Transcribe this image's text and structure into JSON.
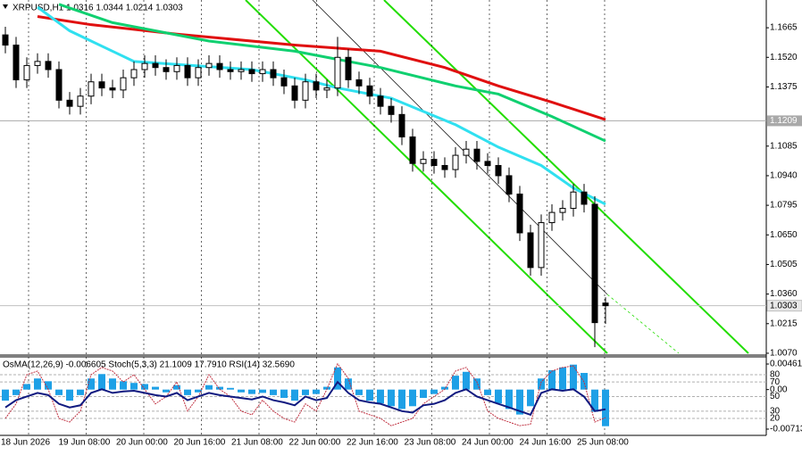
{
  "chart_data": {
    "type": "candlestick",
    "title": "XRPUSD,H1 1.0316 1.0344 1.0214 1.0303",
    "ylim": [
      1.0061,
      1.1801
    ],
    "yticks": [
      1.1665,
      {
        "value": 1.152,
        "label": "1.1520"
      },
      1.1375,
      1.1085,
      {
        "value": 1.094,
        "label": "1.0940"
      },
      1.0795,
      {
        "value": 1.065,
        "label": "1.0650"
      },
      1.0505,
      {
        "value": 1.036,
        "label": "1.0360"
      },
      1.0215,
      {
        "value": 1.007,
        "label": "1.0070"
      }
    ],
    "hline": {
      "value": 1.1209,
      "color": "#a9a9a9"
    },
    "price_line": {
      "value": 1.0303,
      "color": "#c0c0c0"
    },
    "xtick_labels": [
      "18 Jun 2026",
      "19 Jun 08:00",
      "20 Jun 00:00",
      "20 Jun 16:00",
      "21 Jun 08:00",
      "22 Jun 00:00",
      "22 Jun 16:00",
      "23 Jun 08:00",
      "24 Jun 00:00",
      "24 Jun 16:00",
      "25 Jun 08:00"
    ],
    "candles": {
      "open": [
        1.163,
        1.158,
        1.141,
        1.148,
        1.15,
        1.146,
        1.131,
        1.128,
        1.133,
        1.14,
        1.137,
        1.136,
        1.142,
        1.146,
        1.149,
        1.147,
        1.145,
        1.148,
        1.142,
        1.147,
        1.149,
        1.146,
        1.145,
        1.146,
        1.144,
        1.146,
        1.142,
        1.138,
        1.131,
        1.14,
        1.136,
        1.137,
        1.152,
        1.141,
        1.138,
        1.133,
        1.128,
        1.124,
        1.113,
        1.1,
        1.102,
        1.099,
        1.097,
        1.104,
        1.107,
        1.101,
        1.099,
        1.094,
        1.085,
        1.066,
        1.049,
        1.071,
        1.076,
        1.078,
        1.086,
        1.08,
        1.0316
      ],
      "high": [
        1.167,
        1.162,
        1.152,
        1.154,
        1.154,
        1.15,
        1.135,
        1.137,
        1.144,
        1.144,
        1.141,
        1.146,
        1.15,
        1.153,
        1.153,
        1.151,
        1.152,
        1.152,
        1.151,
        1.153,
        1.153,
        1.15,
        1.15,
        1.15,
        1.15,
        1.15,
        1.146,
        1.142,
        1.144,
        1.144,
        1.141,
        1.162,
        1.156,
        1.145,
        1.142,
        1.137,
        1.132,
        1.128,
        1.117,
        1.106,
        1.106,
        1.103,
        1.108,
        1.111,
        1.111,
        1.105,
        1.103,
        1.098,
        1.089,
        1.07,
        1.075,
        1.08,
        1.082,
        1.09,
        1.09,
        1.084,
        1.0344
      ],
      "low": [
        1.154,
        1.137,
        1.137,
        1.144,
        1.142,
        1.127,
        1.124,
        1.124,
        1.129,
        1.133,
        1.132,
        1.132,
        1.138,
        1.142,
        1.143,
        1.141,
        1.141,
        1.138,
        1.138,
        1.143,
        1.142,
        1.141,
        1.141,
        1.14,
        1.14,
        1.138,
        1.134,
        1.127,
        1.127,
        1.132,
        1.132,
        1.133,
        1.137,
        1.134,
        1.129,
        1.124,
        1.12,
        1.109,
        1.096,
        1.096,
        1.095,
        1.093,
        1.093,
        1.1,
        1.097,
        1.095,
        1.09,
        1.081,
        1.062,
        1.045,
        1.045,
        1.067,
        1.072,
        1.074,
        1.076,
        1.01,
        1.0214
      ],
      "close": [
        1.158,
        1.141,
        1.148,
        1.15,
        1.146,
        1.131,
        1.128,
        1.133,
        1.14,
        1.137,
        1.136,
        1.142,
        1.146,
        1.149,
        1.147,
        1.145,
        1.148,
        1.142,
        1.147,
        1.149,
        1.146,
        1.145,
        1.146,
        1.144,
        1.146,
        1.142,
        1.138,
        1.131,
        1.14,
        1.136,
        1.137,
        1.152,
        1.141,
        1.138,
        1.133,
        1.128,
        1.124,
        1.113,
        1.1,
        1.102,
        1.099,
        1.097,
        1.104,
        1.107,
        1.101,
        1.099,
        1.094,
        1.085,
        1.066,
        1.049,
        1.071,
        1.076,
        1.078,
        1.086,
        1.08,
        1.022,
        1.0303
      ]
    },
    "moving_averages": [
      {
        "color": "#e01010",
        "x": [
          3,
          8,
          16,
          27,
          35,
          41,
          46,
          51,
          56
        ],
        "values": [
          1.172,
          1.168,
          1.1634,
          1.158,
          1.155,
          1.147,
          1.138,
          1.13,
          1.1215
        ]
      },
      {
        "color": "#10d070",
        "x": [
          5,
          10,
          19,
          27,
          35,
          42,
          46,
          51,
          56
        ],
        "values": [
          1.178,
          1.169,
          1.16,
          1.155,
          1.147,
          1.138,
          1.134,
          1.123,
          1.111
        ]
      },
      {
        "color": "#30e0f0",
        "x": [
          3,
          6,
          12,
          23,
          28,
          31,
          36,
          42,
          46,
          50,
          53,
          56
        ],
        "values": [
          1.1766,
          1.165,
          1.15,
          1.146,
          1.141,
          1.137,
          1.132,
          1.119,
          1.108,
          1.099,
          1.088,
          1.08
        ]
      }
    ],
    "indicator": {
      "title": "OsMA(12,26,9) -0.006605  Stoch(5,3,3) 21.1009 17.7910  RSI(14) 32.5690",
      "ylim": [
        -0.00826,
        0.0059
      ],
      "yticks": [
        0.00461,
        {
          "value": 0,
          "label": "0.00"
        },
        -0.00713
      ],
      "osc_ylim": [
        -3.3,
        104.5
      ],
      "osc_yticks": [
        80,
        70,
        50,
        30,
        20
      ],
      "osma": {
        "color": "#1ea0e6",
        "values": [
          -0.002,
          -0.001,
          0.001,
          0.002,
          0.0015,
          -0.001,
          -0.002,
          -0.001,
          0.002,
          0.0028,
          0.002,
          0.0015,
          0.0012,
          0.001,
          0.0005,
          -0.0005,
          0.0008,
          -0.001,
          -0.0005,
          0.0008,
          0.0005,
          0.0003,
          -0.0005,
          -0.0008,
          -0.0006,
          -0.001,
          -0.0015,
          -0.002,
          -0.001,
          -0.0008,
          0.0005,
          0.004,
          0.002,
          -0.001,
          -0.002,
          -0.0025,
          -0.003,
          -0.0035,
          -0.003,
          -0.0015,
          -0.0008,
          0.0005,
          0.0025,
          0.0032,
          0.002,
          -0.001,
          -0.0025,
          -0.0035,
          -0.0045,
          -0.003,
          0.002,
          0.0035,
          0.004,
          0.0045,
          0.003,
          -0.004,
          -0.006605
        ]
      },
      "stoch": {
        "color": "#c03040",
        "values": [
          20,
          40,
          80,
          85,
          60,
          20,
          15,
          30,
          80,
          90,
          85,
          70,
          80,
          60,
          40,
          50,
          70,
          30,
          50,
          80,
          60,
          50,
          30,
          25,
          45,
          30,
          20,
          15,
          40,
          30,
          60,
          95,
          75,
          30,
          25,
          20,
          10,
          15,
          20,
          40,
          50,
          60,
          85,
          90,
          70,
          30,
          20,
          15,
          10,
          12,
          70,
          85,
          90,
          92,
          70,
          15,
          21.1009
        ]
      },
      "rsi": {
        "color": "#101a80",
        "values": [
          35,
          45,
          50,
          55,
          52,
          40,
          35,
          38,
          55,
          60,
          55,
          57,
          58,
          55,
          52,
          50,
          55,
          45,
          50,
          55,
          52,
          50,
          48,
          46,
          50,
          45,
          42,
          38,
          50,
          45,
          48,
          70,
          55,
          45,
          42,
          40,
          35,
          30,
          28,
          38,
          40,
          45,
          55,
          60,
          50,
          45,
          40,
          35,
          30,
          25,
          55,
          60,
          58,
          60,
          50,
          30,
          32.569
        ]
      }
    }
  }
}
